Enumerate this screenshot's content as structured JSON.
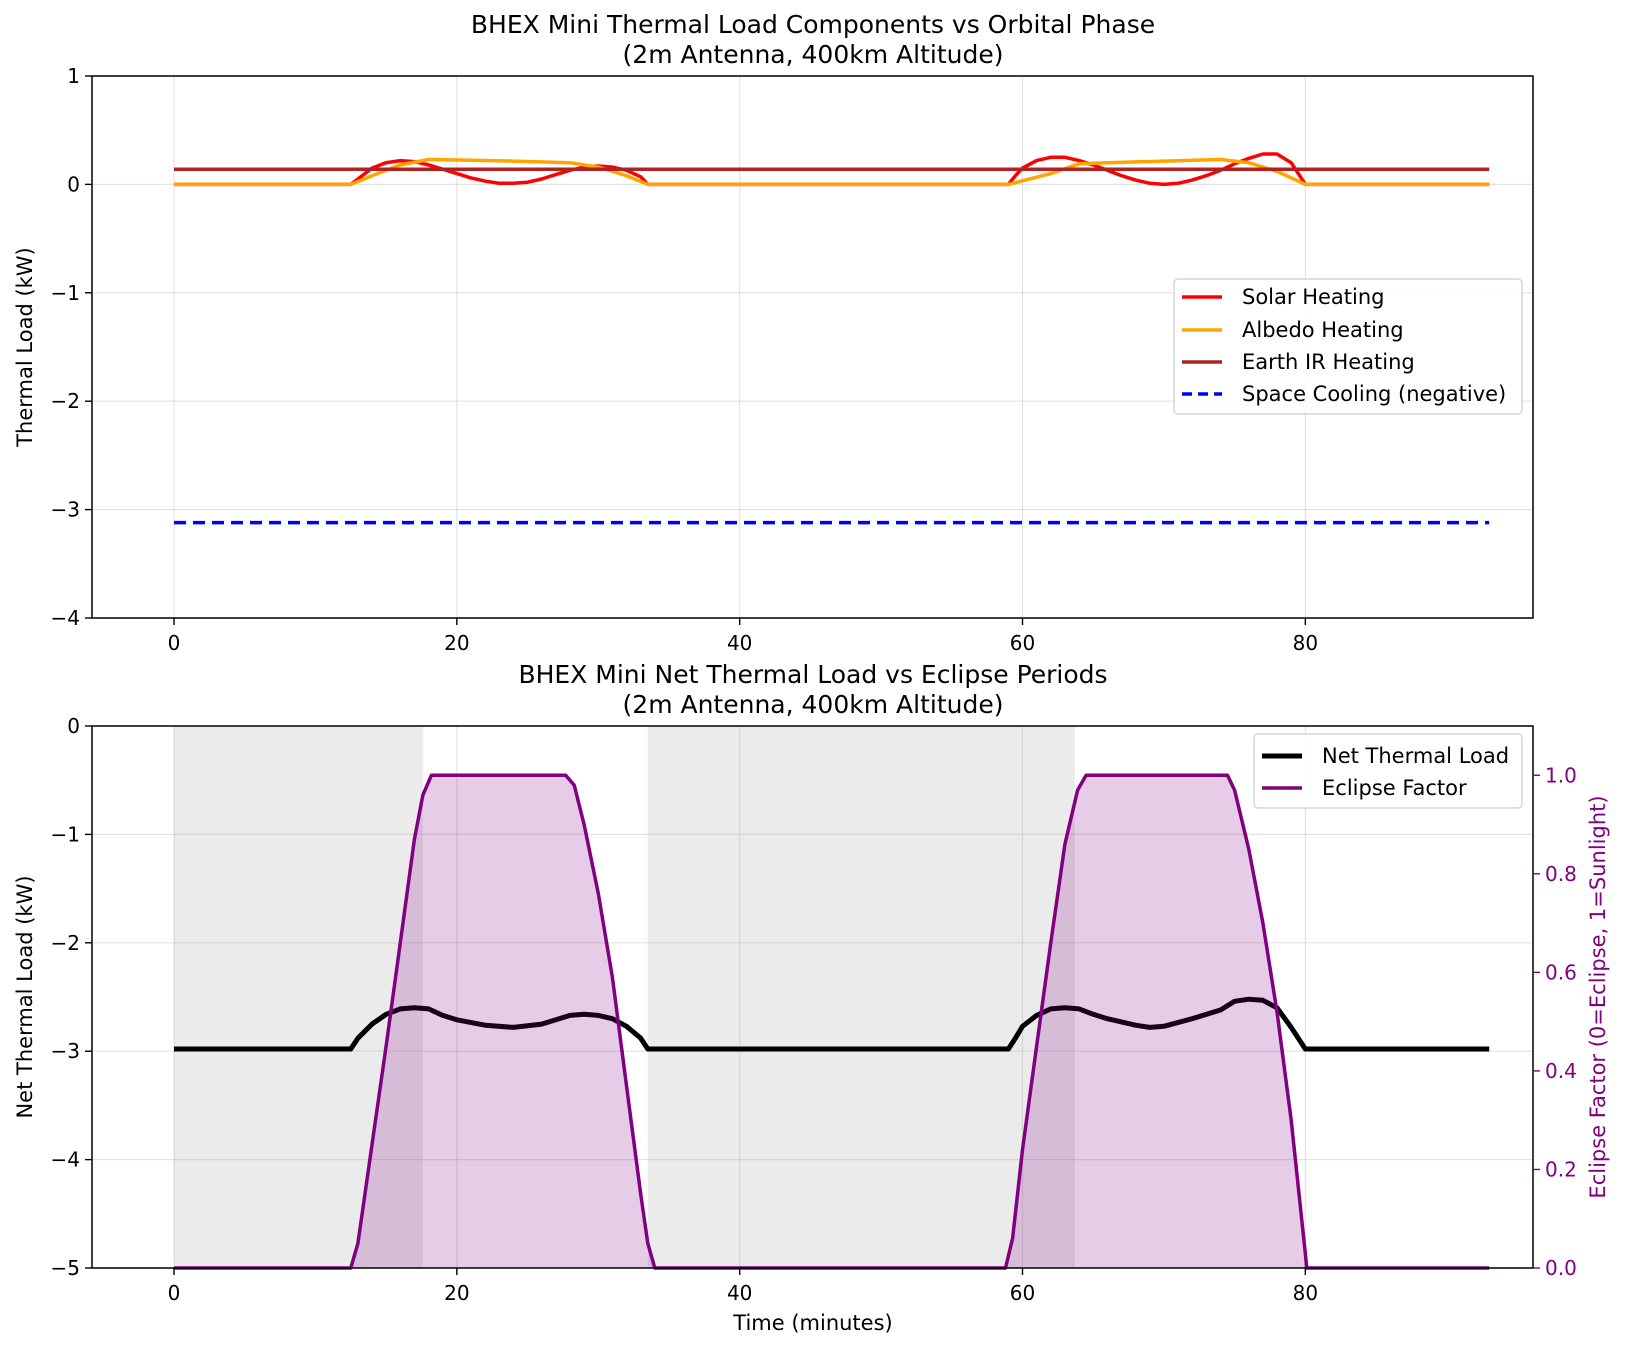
{
  "chart_data": [
    {
      "type": "line",
      "title": "BHEX Mini Thermal Load Components vs Orbital Phase",
      "subtitle": "(2m Antenna, 400km Altitude)",
      "xlabel": "",
      "ylabel": "Thermal Load (kW)",
      "xlim": [
        -5.8,
        96.1
      ],
      "ylim": [
        -4,
        1
      ],
      "xticks": [
        "0",
        "20",
        "40",
        "60",
        "80"
      ],
      "yticks": [
        "1",
        "0",
        "−1",
        "−2",
        "−3",
        "−4"
      ],
      "grid": true,
      "legend_position": "center-right",
      "series": [
        {
          "name": "Solar Heating",
          "color": "#ff0000",
          "style": "solid",
          "points": [
            [
              0,
              0
            ],
            [
              12.5,
              0
            ],
            [
              13,
              0.05
            ],
            [
              14,
              0.15
            ],
            [
              15,
              0.2
            ],
            [
              16,
              0.22
            ],
            [
              17,
              0.21
            ],
            [
              18,
              0.18
            ],
            [
              19,
              0.14
            ],
            [
              20,
              0.1
            ],
            [
              21,
              0.06
            ],
            [
              22,
              0.03
            ],
            [
              23,
              0.01
            ],
            [
              24,
              0.01
            ],
            [
              25,
              0.02
            ],
            [
              26,
              0.05
            ],
            [
              27,
              0.09
            ],
            [
              28,
              0.13
            ],
            [
              29,
              0.16
            ],
            [
              30,
              0.17
            ],
            [
              31,
              0.16
            ],
            [
              32,
              0.13
            ],
            [
              33,
              0.07
            ],
            [
              33.5,
              0
            ],
            [
              59,
              0
            ],
            [
              59.5,
              0.08
            ],
            [
              60,
              0.15
            ],
            [
              61,
              0.22
            ],
            [
              62,
              0.25
            ],
            [
              63,
              0.25
            ],
            [
              64,
              0.22
            ],
            [
              65,
              0.18
            ],
            [
              66,
              0.13
            ],
            [
              67,
              0.08
            ],
            [
              68,
              0.04
            ],
            [
              69,
              0.01
            ],
            [
              70,
              0
            ],
            [
              71,
              0.01
            ],
            [
              72,
              0.04
            ],
            [
              73,
              0.08
            ],
            [
              74,
              0.13
            ],
            [
              75,
              0.19
            ],
            [
              76,
              0.24
            ],
            [
              77,
              0.28
            ],
            [
              78,
              0.28
            ],
            [
              79,
              0.2
            ],
            [
              79.5,
              0.1
            ],
            [
              80,
              0
            ],
            [
              93,
              0
            ]
          ]
        },
        {
          "name": "Albedo Heating",
          "color": "#ffa500",
          "style": "solid",
          "points": [
            [
              0,
              0
            ],
            [
              12.5,
              0
            ],
            [
              14,
              0.08
            ],
            [
              16,
              0.18
            ],
            [
              18,
              0.23
            ],
            [
              20,
              0.225
            ],
            [
              24,
              0.215
            ],
            [
              28,
              0.2
            ],
            [
              30,
              0.16
            ],
            [
              32,
              0.08
            ],
            [
              33.5,
              0
            ],
            [
              59,
              0
            ],
            [
              62,
              0.1
            ],
            [
              64,
              0.19
            ],
            [
              66,
              0.2
            ],
            [
              70,
              0.215
            ],
            [
              74,
              0.23
            ],
            [
              76,
              0.2
            ],
            [
              78,
              0.12
            ],
            [
              80,
              0
            ],
            [
              93,
              0
            ]
          ]
        },
        {
          "name": "Earth IR Heating",
          "color": "#b22222",
          "style": "solid",
          "points": [
            [
              0,
              0.14
            ],
            [
              93,
              0.14
            ]
          ]
        },
        {
          "name": "Space Cooling (negative)",
          "color": "#0000ff",
          "style": "dashed",
          "points": [
            [
              0,
              -3.12
            ],
            [
              93,
              -3.12
            ]
          ]
        }
      ]
    },
    {
      "type": "line",
      "title": "BHEX Mini Net Thermal Load vs Eclipse Periods",
      "subtitle": "(2m Antenna, 400km Altitude)",
      "xlabel": "Time (minutes)",
      "ylabel": "Net Thermal Load (kW)",
      "y2label": "Eclipse Factor (0=Eclipse, 1=Sunlight)",
      "xlim": [
        -5.8,
        96.1
      ],
      "ylim": [
        -5,
        0
      ],
      "y2lim": [
        0,
        1.1
      ],
      "xticks": [
        "0",
        "20",
        "40",
        "60",
        "80"
      ],
      "yticks": [
        "0",
        "−1",
        "−2",
        "−3",
        "−4",
        "−5"
      ],
      "y2ticks": [
        "1.0",
        "0.8",
        "0.6",
        "0.4",
        "0.2",
        "0.0"
      ],
      "grid": true,
      "legend_position": "top-right",
      "eclipse_regions": [
        [
          0,
          17.6
        ],
        [
          33.5,
          63.7
        ]
      ],
      "series": [
        {
          "name": "Net Thermal Load",
          "color": "#000000",
          "axis": "left",
          "points": [
            [
              0,
              -2.98
            ],
            [
              12.5,
              -2.98
            ],
            [
              13,
              -2.88
            ],
            [
              14,
              -2.75
            ],
            [
              15,
              -2.66
            ],
            [
              16,
              -2.61
            ],
            [
              17,
              -2.6
            ],
            [
              18,
              -2.61
            ],
            [
              19,
              -2.67
            ],
            [
              20,
              -2.71
            ],
            [
              22,
              -2.76
            ],
            [
              24,
              -2.78
            ],
            [
              26,
              -2.75
            ],
            [
              28,
              -2.67
            ],
            [
              29,
              -2.66
            ],
            [
              30,
              -2.67
            ],
            [
              31,
              -2.7
            ],
            [
              32,
              -2.77
            ],
            [
              33,
              -2.88
            ],
            [
              33.5,
              -2.98
            ],
            [
              59,
              -2.98
            ],
            [
              59.5,
              -2.88
            ],
            [
              60,
              -2.77
            ],
            [
              61,
              -2.67
            ],
            [
              62,
              -2.61
            ],
            [
              63,
              -2.6
            ],
            [
              64,
              -2.61
            ],
            [
              65,
              -2.66
            ],
            [
              66,
              -2.7
            ],
            [
              68,
              -2.76
            ],
            [
              69,
              -2.78
            ],
            [
              70,
              -2.77
            ],
            [
              72,
              -2.7
            ],
            [
              74,
              -2.62
            ],
            [
              75,
              -2.54
            ],
            [
              76,
              -2.52
            ],
            [
              77,
              -2.53
            ],
            [
              78,
              -2.6
            ],
            [
              79,
              -2.78
            ],
            [
              80,
              -2.98
            ],
            [
              93,
              -2.98
            ]
          ]
        },
        {
          "name": "Eclipse Factor",
          "color": "#800080",
          "axis": "right",
          "points": [
            [
              0,
              0
            ],
            [
              12.5,
              0
            ],
            [
              13,
              0.05
            ],
            [
              14,
              0.25
            ],
            [
              15,
              0.45
            ],
            [
              16,
              0.66
            ],
            [
              17,
              0.87
            ],
            [
              17.6,
              0.96
            ],
            [
              18.2,
              1
            ],
            [
              27.7,
              1
            ],
            [
              28.3,
              0.98
            ],
            [
              29,
              0.9
            ],
            [
              30,
              0.76
            ],
            [
              31,
              0.59
            ],
            [
              32,
              0.37
            ],
            [
              33,
              0.15
            ],
            [
              33.5,
              0.05
            ],
            [
              34,
              0
            ],
            [
              58.8,
              0
            ],
            [
              59.3,
              0.06
            ],
            [
              60,
              0.24
            ],
            [
              61,
              0.45
            ],
            [
              62,
              0.66
            ],
            [
              63,
              0.86
            ],
            [
              63.9,
              0.97
            ],
            [
              64.5,
              1
            ],
            [
              74.5,
              1
            ],
            [
              75,
              0.97
            ],
            [
              76,
              0.85
            ],
            [
              77,
              0.7
            ],
            [
              78,
              0.52
            ],
            [
              79,
              0.3
            ],
            [
              80,
              0.03
            ],
            [
              80.1,
              0
            ],
            [
              93,
              0
            ]
          ]
        }
      ]
    }
  ]
}
